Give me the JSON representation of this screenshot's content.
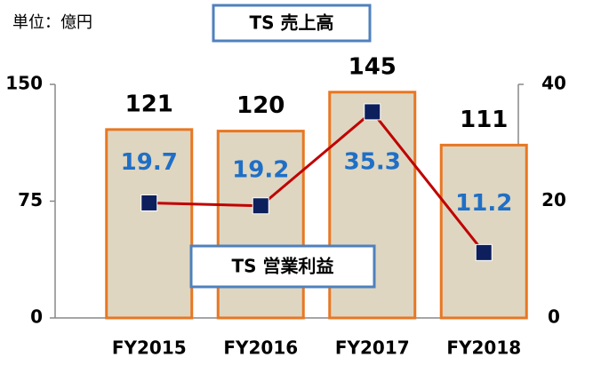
{
  "chart_data": {
    "type": "bar_line",
    "unit_label": "単位：億円",
    "categories": [
      "FY2015",
      "FY2016",
      "FY2017",
      "FY2018"
    ],
    "series": [
      {
        "name": "TS 売上高",
        "type": "bar",
        "color": "#ded6c1",
        "edge_color": "#e87722",
        "values": [
          121,
          120,
          145,
          111
        ]
      },
      {
        "name": "TS 営業利益",
        "type": "line",
        "axis": "y2",
        "color": "#c00000",
        "marker_color": "#0d1f5c",
        "label_color": "#1f6fc6",
        "values": [
          19.7,
          19.2,
          35.3,
          11.2
        ]
      }
    ],
    "ylim": [
      0,
      150
    ],
    "yticks": [
      0,
      75,
      150
    ],
    "y2lim": [
      0,
      40
    ],
    "y2ticks": [
      0,
      20,
      40
    ],
    "legend_box_color": "#4f81bd"
  }
}
